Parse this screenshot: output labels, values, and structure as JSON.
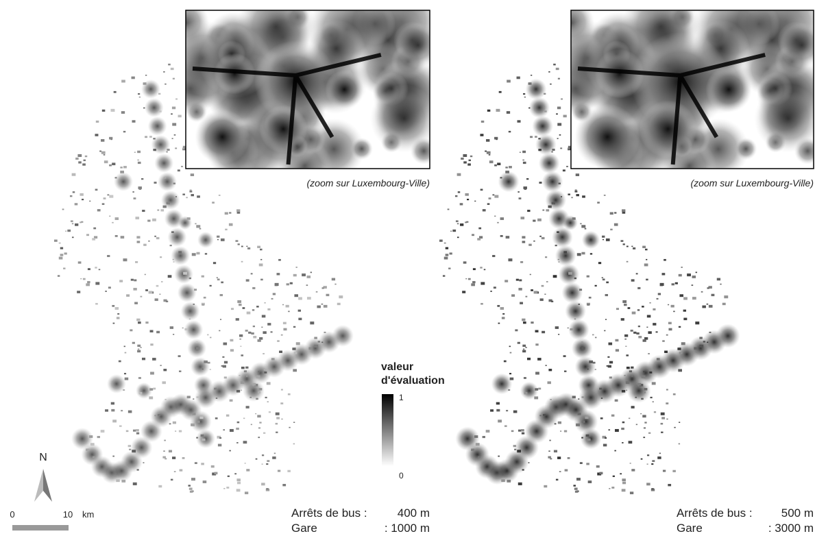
{
  "maps": [
    {
      "zoom_caption": "(zoom sur Luxembourg-Ville)",
      "bus_label": "Arrêts de bus :",
      "bus_value": "400 m",
      "gare_label": "Gare",
      "gare_value": ": 1000 m"
    },
    {
      "zoom_caption": "(zoom sur Luxembourg-Ville)",
      "bus_label": "Arrêts de bus :",
      "bus_value": "500 m",
      "gare_label": "Gare",
      "gare_value": ": 3000 m"
    }
  ],
  "legend": {
    "title_line1": "valeur",
    "title_line2": "d'évaluation",
    "max_label": "1",
    "min_label": "0"
  },
  "north": "N",
  "scale": {
    "start": "0",
    "end": "10",
    "unit": "km"
  }
}
